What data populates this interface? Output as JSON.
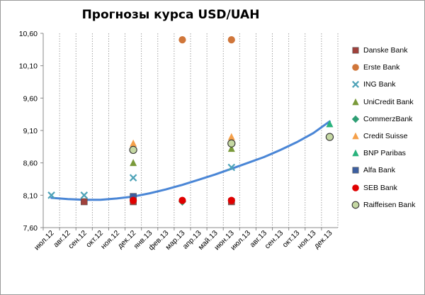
{
  "chart_data": {
    "type": "scatter",
    "title": "Прогнозы курса USD/UAH",
    "xlabel": "",
    "ylabel": "",
    "ylim": [
      7.6,
      10.6
    ],
    "yticks": [
      "7,60",
      "8,10",
      "8,60",
      "9,10",
      "9,60",
      "10,10",
      "10,60"
    ],
    "ytick_values": [
      7.6,
      8.1,
      8.6,
      9.1,
      9.6,
      10.1,
      10.6
    ],
    "categories": [
      "июл.12",
      "авг.12",
      "сен.12",
      "окт.12",
      "ноя.12",
      "дек.12",
      "янв.13",
      "фев.13",
      "мар.13",
      "апр.13",
      "май.13",
      "июн.13",
      "июл.13",
      "авг.13",
      "сен.13",
      "окт.13",
      "ноя.13",
      "дек.13"
    ],
    "grid": "vertical dotted",
    "legend_position": "right",
    "series": [
      {
        "name": "Danske Bank",
        "marker": "square",
        "color": "#a0413c",
        "points": [
          [
            "сен.12",
            8.0
          ],
          [
            "дек.12",
            8.0
          ],
          [
            "июн.13",
            8.0
          ]
        ]
      },
      {
        "name": "Erste Bank",
        "marker": "circle",
        "color": "#d0763a",
        "points": [
          [
            "мар.13",
            10.5
          ],
          [
            "июн.13",
            10.5
          ]
        ]
      },
      {
        "name": "ING Bank",
        "marker": "x",
        "color": "#4fa3b8",
        "points": [
          [
            "июл.12",
            8.1
          ],
          [
            "сен.12",
            8.1
          ],
          [
            "дек.12",
            8.37
          ],
          [
            "июн.13",
            8.53
          ]
        ]
      },
      {
        "name": "UniCredit Bank",
        "marker": "triangle",
        "color": "#7a9a3a",
        "points": [
          [
            "дек.12",
            8.6
          ],
          [
            "июн.13",
            8.82
          ]
        ]
      },
      {
        "name": "CommerzBank",
        "marker": "diamond",
        "color": "#2e9e74",
        "points": [
          [
            "мар.13",
            8.0
          ]
        ]
      },
      {
        "name": "Credit Suisse",
        "marker": "triangle",
        "color": "#f5a04a",
        "points": [
          [
            "дек.12",
            8.9
          ],
          [
            "июн.13",
            9.0
          ]
        ]
      },
      {
        "name": "BNP Paribas",
        "marker": "triangle",
        "color": "#29b37d",
        "points": [
          [
            "дек.13",
            9.2
          ]
        ]
      },
      {
        "name": "Alfa Bank",
        "marker": "square",
        "color": "#3d5fa0",
        "points": [
          [
            "дек.12",
            8.08
          ]
        ]
      },
      {
        "name": "SEB Bank",
        "marker": "circle",
        "color": "#e00000",
        "points": [
          [
            "дек.12",
            8.02
          ],
          [
            "мар.13",
            8.02
          ],
          [
            "июн.13",
            8.02
          ]
        ]
      },
      {
        "name": "Raiffeisen Bank",
        "marker": "circle-hollow",
        "color": "#c5d8a3",
        "points": [
          [
            "дек.12",
            8.8
          ],
          [
            "июн.13",
            8.9
          ],
          [
            "дек.13",
            9.0
          ]
        ]
      }
    ],
    "trend": {
      "type": "line",
      "color": "#4a86d6",
      "points": [
        [
          "июл.12",
          8.06
        ],
        [
          "авг.12",
          8.04
        ],
        [
          "сен.12",
          8.03
        ],
        [
          "окт.12",
          8.03
        ],
        [
          "ноя.12",
          8.05
        ],
        [
          "дек.12",
          8.08
        ],
        [
          "янв.13",
          8.13
        ],
        [
          "фев.13",
          8.19
        ],
        [
          "мар.13",
          8.26
        ],
        [
          "апр.13",
          8.34
        ],
        [
          "май.13",
          8.42
        ],
        [
          "июн.13",
          8.51
        ],
        [
          "июл.13",
          8.6
        ],
        [
          "авг.13",
          8.69
        ],
        [
          "сен.13",
          8.8
        ],
        [
          "окт.13",
          8.92
        ],
        [
          "ноя.13",
          9.06
        ],
        [
          "дек.13",
          9.24
        ]
      ]
    }
  }
}
